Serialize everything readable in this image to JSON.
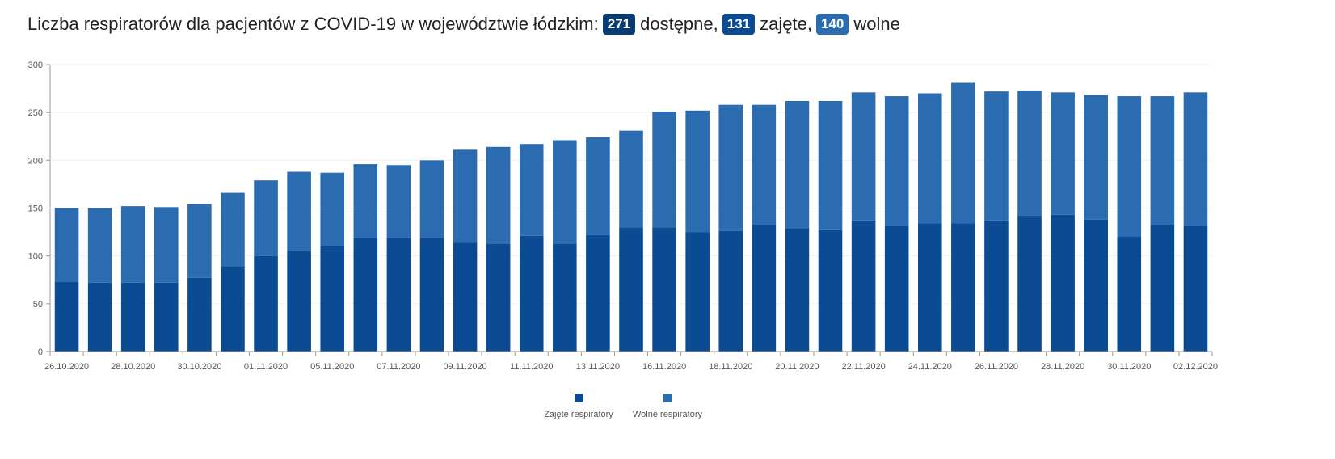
{
  "header": {
    "title_prefix": "Liczba respiratorów dla pacjentów z COVID-19 w województwie łódzkim:",
    "available_value": "271",
    "available_label": "dostępne,",
    "occupied_value": "131",
    "occupied_label": "zajęte,",
    "free_value": "140",
    "free_label": "wolne"
  },
  "colors": {
    "occupied": "#0a4b94",
    "free": "#2b6cb0",
    "badge_available": "#073b73",
    "badge_occupied": "#0a4b94",
    "badge_free": "#2b6cb0"
  },
  "legend": {
    "occupied_label": "Zajęte respiratory",
    "free_label": "Wolne respiratory"
  },
  "chart_data": {
    "type": "bar",
    "stacked": true,
    "title": "",
    "xlabel": "",
    "ylabel": "",
    "ylim": [
      0,
      300
    ],
    "yticks": [
      0,
      50,
      100,
      150,
      200,
      250,
      300
    ],
    "grid": true,
    "legend_position": "bottom",
    "categories": [
      "26.10.2020",
      "27.10.2020",
      "28.10.2020",
      "29.10.2020",
      "30.10.2020",
      "31.10.2020",
      "01.11.2020",
      "02.11.2020",
      "05.11.2020",
      "06.11.2020",
      "07.11.2020",
      "08.11.2020",
      "09.11.2020",
      "10.11.2020",
      "11.11.2020",
      "12.11.2020",
      "13.11.2020",
      "14.11.2020",
      "16.11.2020",
      "17.11.2020",
      "18.11.2020",
      "19.11.2020",
      "20.11.2020",
      "21.11.2020",
      "22.11.2020",
      "23.11.2020",
      "24.11.2020",
      "25.11.2020",
      "26.11.2020",
      "27.11.2020",
      "28.11.2020",
      "29.11.2020",
      "30.11.2020",
      "01.12.2020",
      "02.12.2020"
    ],
    "tick_labels": [
      "26.10.2020",
      "",
      "28.10.2020",
      "",
      "30.10.2020",
      "",
      "01.11.2020",
      "",
      "05.11.2020",
      "",
      "07.11.2020",
      "",
      "09.11.2020",
      "",
      "11.11.2020",
      "",
      "13.11.2020",
      "",
      "16.11.2020",
      "",
      "18.11.2020",
      "",
      "20.11.2020",
      "",
      "22.11.2020",
      "",
      "24.11.2020",
      "",
      "26.11.2020",
      "",
      "28.11.2020",
      "",
      "30.11.2020",
      "",
      "02.12.2020"
    ],
    "series": [
      {
        "name": "Zajęte respiratory",
        "values": [
          73,
          72,
          72,
          72,
          77,
          88,
          100,
          105,
          110,
          119,
          119,
          119,
          114,
          113,
          121,
          113,
          122,
          130,
          130,
          125,
          126,
          133,
          129,
          127,
          137,
          131,
          134,
          134,
          137,
          142,
          143,
          138,
          120,
          133,
          131
        ]
      },
      {
        "name": "Wolne respiratory",
        "values": [
          77,
          78,
          80,
          79,
          77,
          78,
          79,
          83,
          77,
          77,
          76,
          81,
          97,
          101,
          96,
          108,
          102,
          101,
          121,
          127,
          132,
          125,
          133,
          135,
          134,
          136,
          136,
          147,
          135,
          131,
          128,
          130,
          147,
          134,
          140
        ]
      }
    ]
  }
}
